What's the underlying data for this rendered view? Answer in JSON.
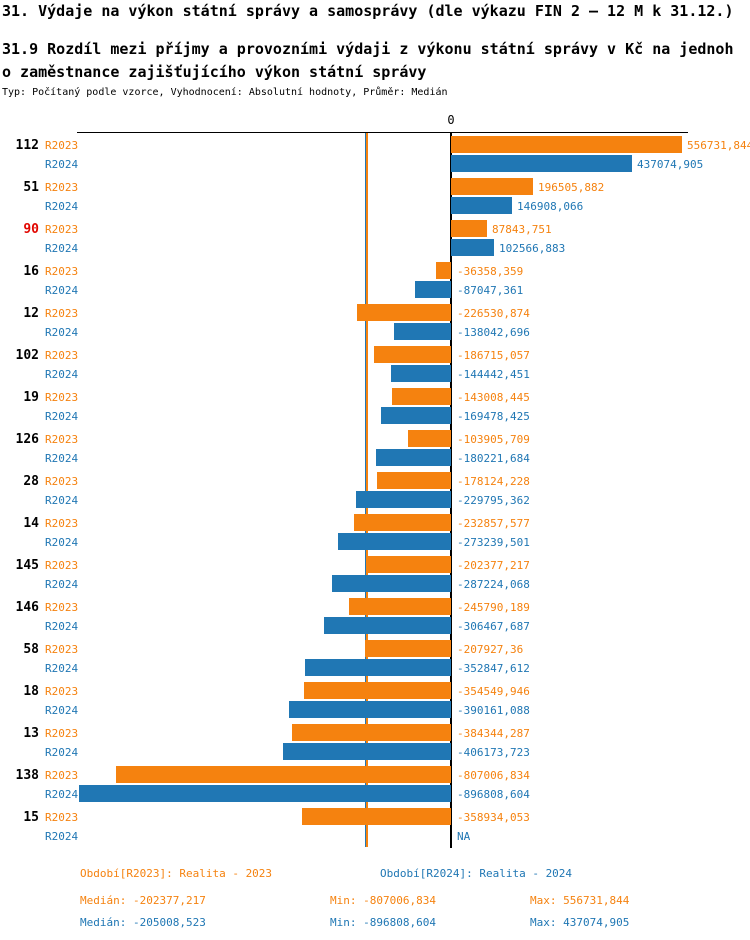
{
  "page": {
    "title": "31. Výdaje na výkon státní správy a samosprávy (dle výkazu FIN 2 – 12 M k 31.12.)",
    "subtitle_line1": "31.9 Rozdíl mezi příjmy a provozními výdaji z výkonu státní správy v Kč na jednoh",
    "subtitle_line2": "o zaměstnance zajišťujícího výkon státní správy",
    "meta": "Typ: Počítaný podle vzorce, Vyhodnocení: Absolutní hodnoty, Průměr: Medián"
  },
  "colors": {
    "orange": "#F5820F",
    "blue": "#2077B4",
    "red": "#E10600",
    "black": "#000000"
  },
  "chart_data": {
    "type": "bar",
    "orientation": "horizontal",
    "zero_tick_label": "0",
    "categories": [
      "112",
      "51",
      "90",
      "16",
      "12",
      "102",
      "19",
      "126",
      "28",
      "14",
      "145",
      "146",
      "58",
      "18",
      "13",
      "138",
      "15"
    ],
    "highlighted_category": "90",
    "series": [
      {
        "name": "R2023",
        "color_key": "orange",
        "values": [
          556731.844,
          196505.882,
          87843.751,
          -36358.359,
          -226530.874,
          -186715.057,
          -143008.445,
          -103905.709,
          -178124.228,
          -232857.577,
          -202377.217,
          -245790.189,
          -207927.36,
          -354549.946,
          -384344.287,
          -807006.834,
          -358934.053
        ],
        "labels": [
          "556731,844",
          "196505,882",
          "87843,751",
          "-36358,359",
          "-226530,874",
          "-186715,057",
          "-143008,445",
          "-103905,709",
          "-178124,228",
          "-232857,577",
          "-202377,217",
          "-245790,189",
          "-207927,36",
          "-354549,946",
          "-384344,287",
          "-807006,834",
          "-358934,053"
        ]
      },
      {
        "name": "R2024",
        "color_key": "blue",
        "values": [
          437074.905,
          146908.066,
          102566.883,
          -87047.361,
          -138042.696,
          -144442.451,
          -169478.425,
          -180221.684,
          -229795.362,
          -273239.501,
          -287224.068,
          -306467.687,
          -352847.612,
          -390161.088,
          -406173.723,
          -896808.604,
          null
        ],
        "labels": [
          "437074,905",
          "146908,066",
          "102566,883",
          "-87047,361",
          "-138042,696",
          "-144442,451",
          "-169478,425",
          "-180221,684",
          "-229795,362",
          "-273239,501",
          "-287224,068",
          "-306467,687",
          "-352847,612",
          "-390161,088",
          "-406173,723",
          "-896808,604",
          "NA"
        ]
      }
    ],
    "median_lines": [
      {
        "series": "R2024",
        "value": -205008.523,
        "color_key": "blue"
      },
      {
        "series": "R2023",
        "value": -202377.217,
        "color_key": "orange"
      }
    ],
    "xlim": [
      -901000,
      571000
    ],
    "grid": false,
    "legend_position": "bottom"
  },
  "legend": {
    "r2023": "Období[R2023]: Realita - 2023",
    "r2024": "Období[R2024]: Realita - 2024"
  },
  "stats": {
    "r2023": {
      "median": "Medián: -202377,217",
      "min": "Min: -807006,834",
      "max": "Max: 556731,844"
    },
    "r2024": {
      "median": "Medián: -205008,523",
      "min": "Min: -896808,604",
      "max": "Max: 437074,905"
    }
  }
}
